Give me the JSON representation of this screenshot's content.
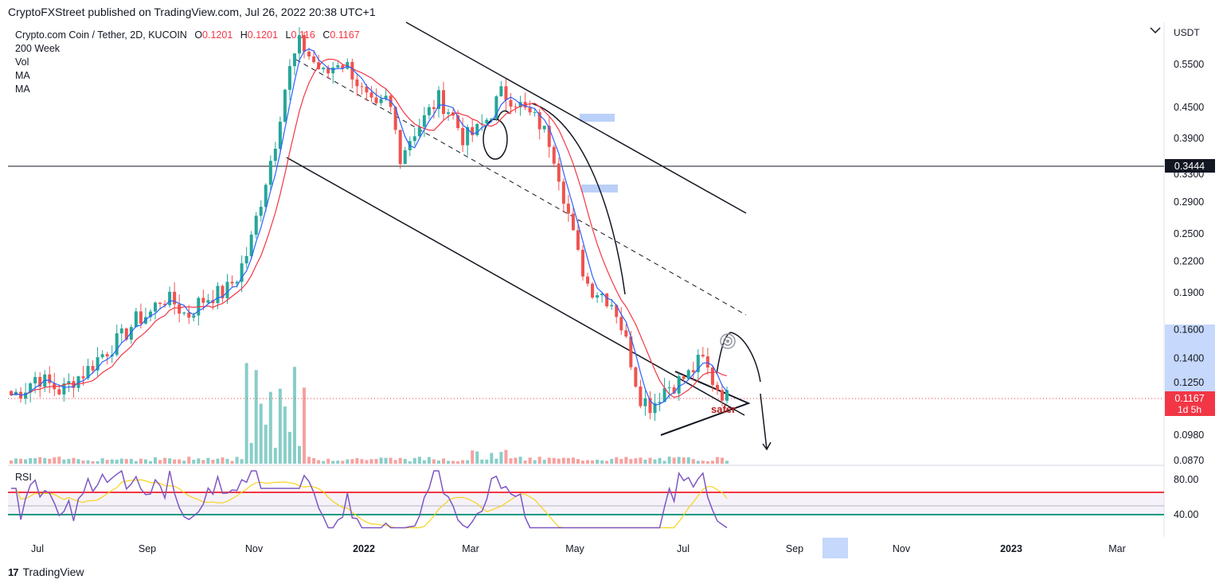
{
  "header": {
    "publisher_line": "CryptoFXStreet published on TradingView.com, Jul 26, 2022 20:38 UTC+1"
  },
  "legend": {
    "symbol": "Crypto.com Coin / Tether, 2D, KUCOIN",
    "o_label": "O",
    "o_value": "0.1201",
    "h_label": "H",
    "h_value": "0.1201",
    "l_label": "L",
    "l_value": "0.116",
    "c_label": "C",
    "c_value": "0.1167",
    "lines": [
      "200 Week",
      "Vol",
      "MA",
      "MA"
    ]
  },
  "footer": {
    "brand": "TradingView"
  },
  "colors": {
    "up": "#26a69a",
    "down": "#ef5350",
    "ma_fast": "#2962ff",
    "ma_slow": "#f23645",
    "rsi": "#7e57c2"
  },
  "chart_data": {
    "type": "candlestick",
    "currency": "USDT",
    "price_axis_ticks": [
      "0.5500",
      "0.4500",
      "0.3900",
      "0.3300",
      "0.2900",
      "0.2500",
      "0.2200",
      "0.1900",
      "0.1600",
      "0.1400",
      "0.1250",
      "0.0980",
      "0.0870"
    ],
    "horizontal_level": "0.3444",
    "last_price": "0.1167",
    "countdown": "1d 5h",
    "time_axis_labels": [
      "Jul",
      "Sep",
      "Nov",
      "2022",
      "Mar",
      "May",
      "Jul",
      "Sep",
      "Nov",
      "2023",
      "Mar"
    ],
    "rsi_ticks": [
      "80.00",
      "40.00"
    ],
    "rsi_label": "RSI",
    "annotation_text": "safer",
    "approx_close_series": [
      0.118,
      0.121,
      0.129,
      0.124,
      0.12,
      0.127,
      0.132,
      0.141,
      0.148,
      0.156,
      0.168,
      0.172,
      0.186,
      0.181,
      0.17,
      0.182,
      0.188,
      0.19,
      0.205,
      0.235,
      0.3,
      0.38,
      0.52,
      0.61,
      0.56,
      0.52,
      0.56,
      0.54,
      0.48,
      0.44,
      0.47,
      0.36,
      0.4,
      0.43,
      0.47,
      0.44,
      0.39,
      0.4,
      0.43,
      0.48,
      0.47,
      0.44,
      0.42,
      0.38,
      0.3,
      0.23,
      0.195,
      0.19,
      0.18,
      0.15,
      0.118,
      0.112,
      0.122,
      0.125,
      0.13,
      0.14,
      0.124,
      0.1167
    ]
  }
}
